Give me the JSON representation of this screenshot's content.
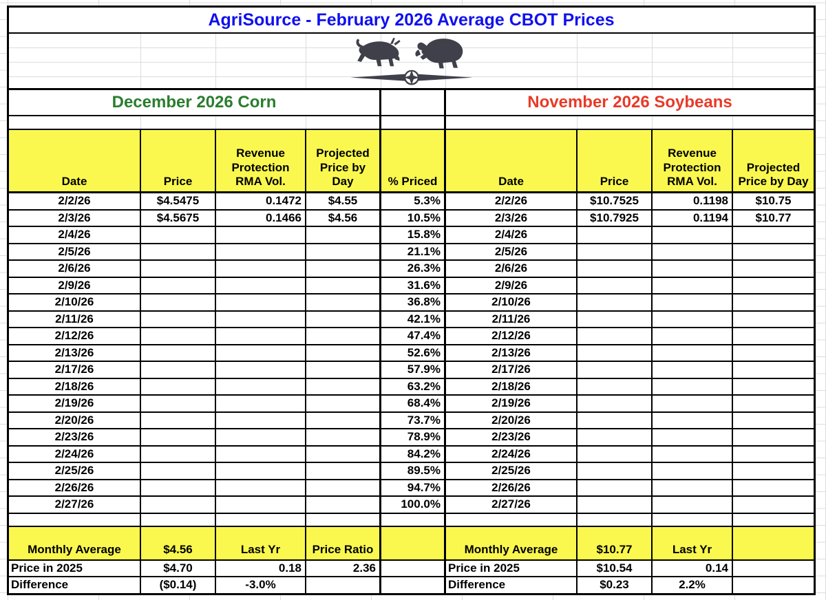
{
  "title": "AgriSource - February 2026 Average CBOT Prices",
  "logo": {
    "icon": "bull-bear-compass-logo"
  },
  "sections": {
    "corn": "December 2026 Corn",
    "soy": "November 2026 Soybeans"
  },
  "corn_header": [
    "Date",
    "Price",
    "Revenue\nProtection\nRMA Vol.",
    "Projected\nPrice by\nDay",
    "% Priced"
  ],
  "soy_header": [
    "Date",
    "Price",
    "Revenue\nProtection\nRMA Vol.",
    "Projected\nPrice by Day"
  ],
  "rows": [
    [
      "2/2/26",
      "$4.5475",
      "0.1472",
      "$4.55",
      "5.3%",
      "2/2/26",
      "$10.7525",
      "0.1198",
      "$10.75"
    ],
    [
      "2/3/26",
      "$4.5675",
      "0.1466",
      "$4.56",
      "10.5%",
      "2/3/26",
      "$10.7925",
      "0.1194",
      "$10.77"
    ],
    [
      "2/4/26",
      "",
      "",
      "",
      "15.8%",
      "2/4/26",
      "",
      "",
      ""
    ],
    [
      "2/5/26",
      "",
      "",
      "",
      "21.1%",
      "2/5/26",
      "",
      "",
      ""
    ],
    [
      "2/6/26",
      "",
      "",
      "",
      "26.3%",
      "2/6/26",
      "",
      "",
      ""
    ],
    [
      "2/9/26",
      "",
      "",
      "",
      "31.6%",
      "2/9/26",
      "",
      "",
      ""
    ],
    [
      "2/10/26",
      "",
      "",
      "",
      "36.8%",
      "2/10/26",
      "",
      "",
      ""
    ],
    [
      "2/11/26",
      "",
      "",
      "",
      "42.1%",
      "2/11/26",
      "",
      "",
      ""
    ],
    [
      "2/12/26",
      "",
      "",
      "",
      "47.4%",
      "2/12/26",
      "",
      "",
      ""
    ],
    [
      "2/13/26",
      "",
      "",
      "",
      "52.6%",
      "2/13/26",
      "",
      "",
      ""
    ],
    [
      "2/17/26",
      "",
      "",
      "",
      "57.9%",
      "2/17/26",
      "",
      "",
      ""
    ],
    [
      "2/18/26",
      "",
      "",
      "",
      "63.2%",
      "2/18/26",
      "",
      "",
      ""
    ],
    [
      "2/19/26",
      "",
      "",
      "",
      "68.4%",
      "2/19/26",
      "",
      "",
      ""
    ],
    [
      "2/20/26",
      "",
      "",
      "",
      "73.7%",
      "2/20/26",
      "",
      "",
      ""
    ],
    [
      "2/23/26",
      "",
      "",
      "",
      "78.9%",
      "2/23/26",
      "",
      "",
      ""
    ],
    [
      "2/24/26",
      "",
      "",
      "",
      "84.2%",
      "2/24/26",
      "",
      "",
      ""
    ],
    [
      "2/25/26",
      "",
      "",
      "",
      "89.5%",
      "2/25/26",
      "",
      "",
      ""
    ],
    [
      "2/26/26",
      "",
      "",
      "",
      "94.7%",
      "2/26/26",
      "",
      "",
      ""
    ],
    [
      "2/27/26",
      "",
      "",
      "",
      "100.0%",
      "2/27/26",
      "",
      "",
      ""
    ]
  ],
  "summary": {
    "average": [
      "Monthly Average",
      "$4.56",
      "Last Yr",
      "Price Ratio",
      "",
      "Monthly Average",
      "$10.77",
      "Last Yr",
      ""
    ],
    "price_2025": [
      "Price in 2025",
      "$4.70",
      "0.18",
      "2.36",
      "",
      "Price in 2025",
      "$10.54",
      "0.14",
      ""
    ],
    "difference": [
      "Difference",
      "($0.14)",
      "-3.0%",
      "",
      "",
      "Difference",
      "$0.23",
      "2.2%",
      ""
    ]
  },
  "colors": {
    "title": "#1010ee",
    "corn_section": "#2a7d2e",
    "soy_section": "#e83a28",
    "header_highlight": "#faf84e",
    "logo_ink": "#3f404a"
  }
}
